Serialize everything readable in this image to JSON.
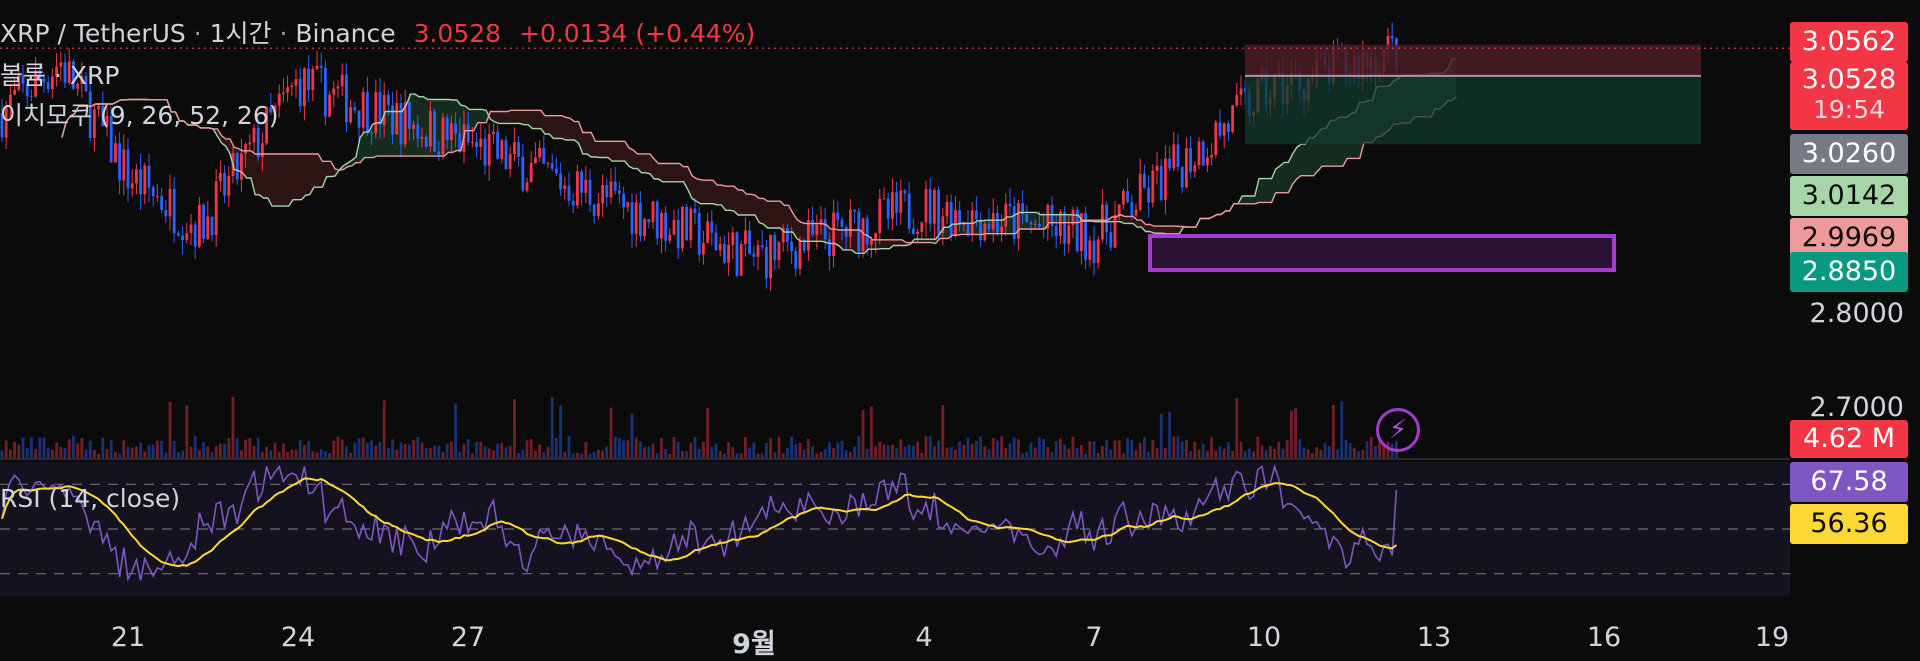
{
  "header": {
    "symbol": "XRP / TetherUS",
    "interval": "1시간",
    "exchange": "Binance",
    "price": "3.0528",
    "change": "+0.0134",
    "change_pct": "(+0.44%)",
    "volume_label": "볼륨 · XRP",
    "ichimoku_label": "이치모쿠 (9, 26, 52, 26)",
    "rsi_label": "RSI (14, close)"
  },
  "price_axis": {
    "ticks": [
      "2.8000",
      "2.7000"
    ],
    "tags": [
      {
        "label": "3.0562",
        "color": "#f23645"
      },
      {
        "label": "3.0528",
        "sub": "19:54",
        "color": "#f23645"
      },
      {
        "label": "3.0260",
        "color": "#787b86"
      },
      {
        "label": "3.0142",
        "color": "#a5d6a7"
      },
      {
        "label": "2.9969",
        "color": "#ef9a9a"
      },
      {
        "label": "2.8850",
        "color": "#089981"
      },
      {
        "label": "4.62 M",
        "color": "#f23645"
      },
      {
        "label": "67.58",
        "color": "#7e57c2"
      },
      {
        "label": "56.36",
        "color": "#fdd835"
      }
    ]
  },
  "date_axis": [
    "21",
    "24",
    "27",
    "9월",
    "4",
    "7",
    "10",
    "13",
    "16",
    "19"
  ],
  "chart_data": {
    "type": "candlestick",
    "title": "XRP / TetherUS · 1시간 · Binance",
    "interval": "1h",
    "ylim": [
      2.66,
      3.08
    ],
    "price_path_approx": {
      "x": [
        "21",
        "24",
        "27",
        "9월",
        "4",
        "7",
        "10",
        "13"
      ],
      "close": [
        2.93,
        3.02,
        2.96,
        2.85,
        2.9,
        2.87,
        3.01,
        3.05
      ]
    },
    "last_price": 3.0528,
    "last_change": 0.0134,
    "last_change_pct": 0.44,
    "levels": [
      3.0562,
      3.0528,
      3.026,
      3.0142,
      2.9969,
      2.885
    ],
    "position_box": {
      "entry": 3.026,
      "target_top": 3.0562,
      "stop": 2.96
    },
    "volume_last": "4.62 M",
    "rsi": {
      "period": 14,
      "source": "close",
      "last": 67.58,
      "ma_last": 56.36,
      "bands": [
        30,
        50,
        70
      ]
    },
    "ichimoku": {
      "conversion": 9,
      "base": 26,
      "span_b": 52,
      "displacement": 26
    },
    "colors": {
      "up": "#f23645",
      "down": "#2962ff",
      "rsi": "#7e57c2",
      "rsi_ma": "#fdd835",
      "span_a": "#a5d6a7",
      "span_b": "#ef9a9a",
      "cloud_bull": "#1b3a26",
      "cloud_bear": "#3d1a1a"
    }
  },
  "icons": {
    "flash": "lightning-icon"
  }
}
